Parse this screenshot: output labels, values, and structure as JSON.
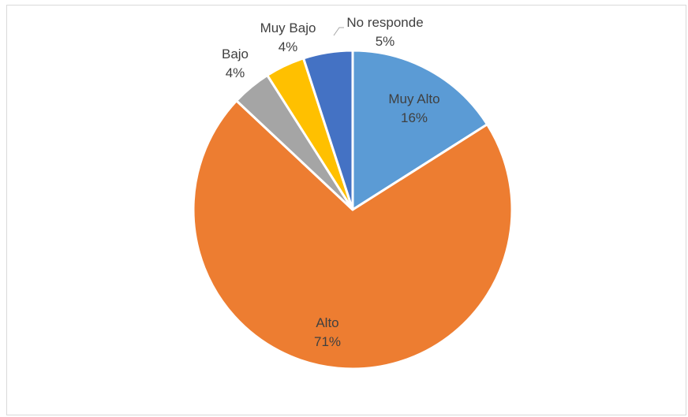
{
  "chart_data": {
    "type": "pie",
    "start_angle_deg": 0,
    "direction": "clockwise",
    "slices": [
      {
        "label": "Muy Alto",
        "value": 16,
        "value_label": "16%",
        "color": "#5b9bd5"
      },
      {
        "label": "Alto",
        "value": 71,
        "value_label": "71%",
        "color": "#ed7d31"
      },
      {
        "label": "Bajo",
        "value": 4,
        "value_label": "4%",
        "color": "#a5a5a5"
      },
      {
        "label": "Muy Bajo",
        "value": 4,
        "value_label": "4%",
        "color": "#ffc000"
      },
      {
        "label": "No responde",
        "value": 5,
        "value_label": "5%",
        "color": "#4472c4"
      }
    ]
  }
}
